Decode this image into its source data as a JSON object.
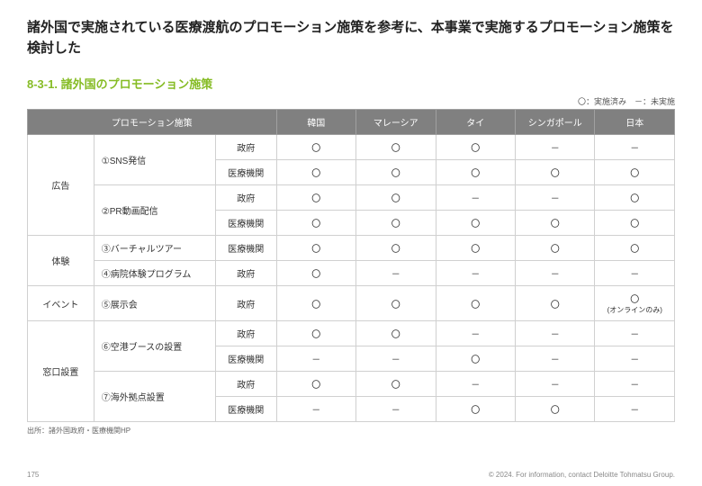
{
  "title": "諸外国で実施されている医療渡航のプロモーション施策を参考に、本事業で実施するプロモーション施策を検討した",
  "subtitle": {
    "text": "8-3-1. 諸外国のプロモーション施策",
    "color": "#86bc25"
  },
  "legend": "〇：実施済み　－：未実施",
  "headers": {
    "measure": "プロモーション施策",
    "countries": [
      "韓国",
      "マレーシア",
      "タイ",
      "シンガポール",
      "日本"
    ]
  },
  "categories": [
    {
      "name": "広告",
      "rowspan": 4,
      "items": [
        {
          "label": "①SNS発信",
          "rowspan": 2,
          "rows": [
            {
              "actor": "政府",
              "cells": [
                "〇",
                "〇",
                "〇",
                "－",
                "－"
              ]
            },
            {
              "actor": "医療機関",
              "cells": [
                "〇",
                "〇",
                "〇",
                "〇",
                "〇"
              ]
            }
          ]
        },
        {
          "label": "②PR動画配信",
          "rowspan": 2,
          "rows": [
            {
              "actor": "政府",
              "cells": [
                "〇",
                "〇",
                "－",
                "－",
                "〇"
              ]
            },
            {
              "actor": "医療機関",
              "cells": [
                "〇",
                "〇",
                "〇",
                "〇",
                "〇"
              ]
            }
          ]
        }
      ]
    },
    {
      "name": "体験",
      "rowspan": 2,
      "items": [
        {
          "label": "③バーチャルツアー",
          "rowspan": 1,
          "rows": [
            {
              "actor": "医療機関",
              "cells": [
                "〇",
                "〇",
                "〇",
                "〇",
                "〇"
              ]
            }
          ]
        },
        {
          "label": "④病院体験プログラム",
          "rowspan": 1,
          "rows": [
            {
              "actor": "政府",
              "cells": [
                "〇",
                "－",
                "－",
                "－",
                "－"
              ]
            }
          ]
        }
      ]
    },
    {
      "name": "イベント",
      "rowspan": 1,
      "items": [
        {
          "label": "⑤展示会",
          "rowspan": 1,
          "rows": [
            {
              "actor": "政府",
              "cells": [
                "〇",
                "〇",
                "〇",
                "〇",
                "〇\n(オンラインのみ)"
              ]
            }
          ]
        }
      ]
    },
    {
      "name": "窓口設置",
      "rowspan": 4,
      "items": [
        {
          "label": "⑥空港ブースの設置",
          "rowspan": 2,
          "rows": [
            {
              "actor": "政府",
              "cells": [
                "〇",
                "〇",
                "－",
                "－",
                "－"
              ]
            },
            {
              "actor": "医療機関",
              "cells": [
                "－",
                "－",
                "〇",
                "－",
                "－"
              ]
            }
          ]
        },
        {
          "label": "⑦海外拠点設置",
          "rowspan": 2,
          "rows": [
            {
              "actor": "政府",
              "cells": [
                "〇",
                "〇",
                "－",
                "－",
                "－"
              ]
            },
            {
              "actor": "医療機関",
              "cells": [
                "－",
                "－",
                "〇",
                "〇",
                "－"
              ]
            }
          ]
        }
      ]
    }
  ],
  "source": "出所：諸外国政府・医療機関HP",
  "footer": {
    "page": "175",
    "copyright": "© 2024. For information, contact Deloitte Tohmatsu Group."
  }
}
